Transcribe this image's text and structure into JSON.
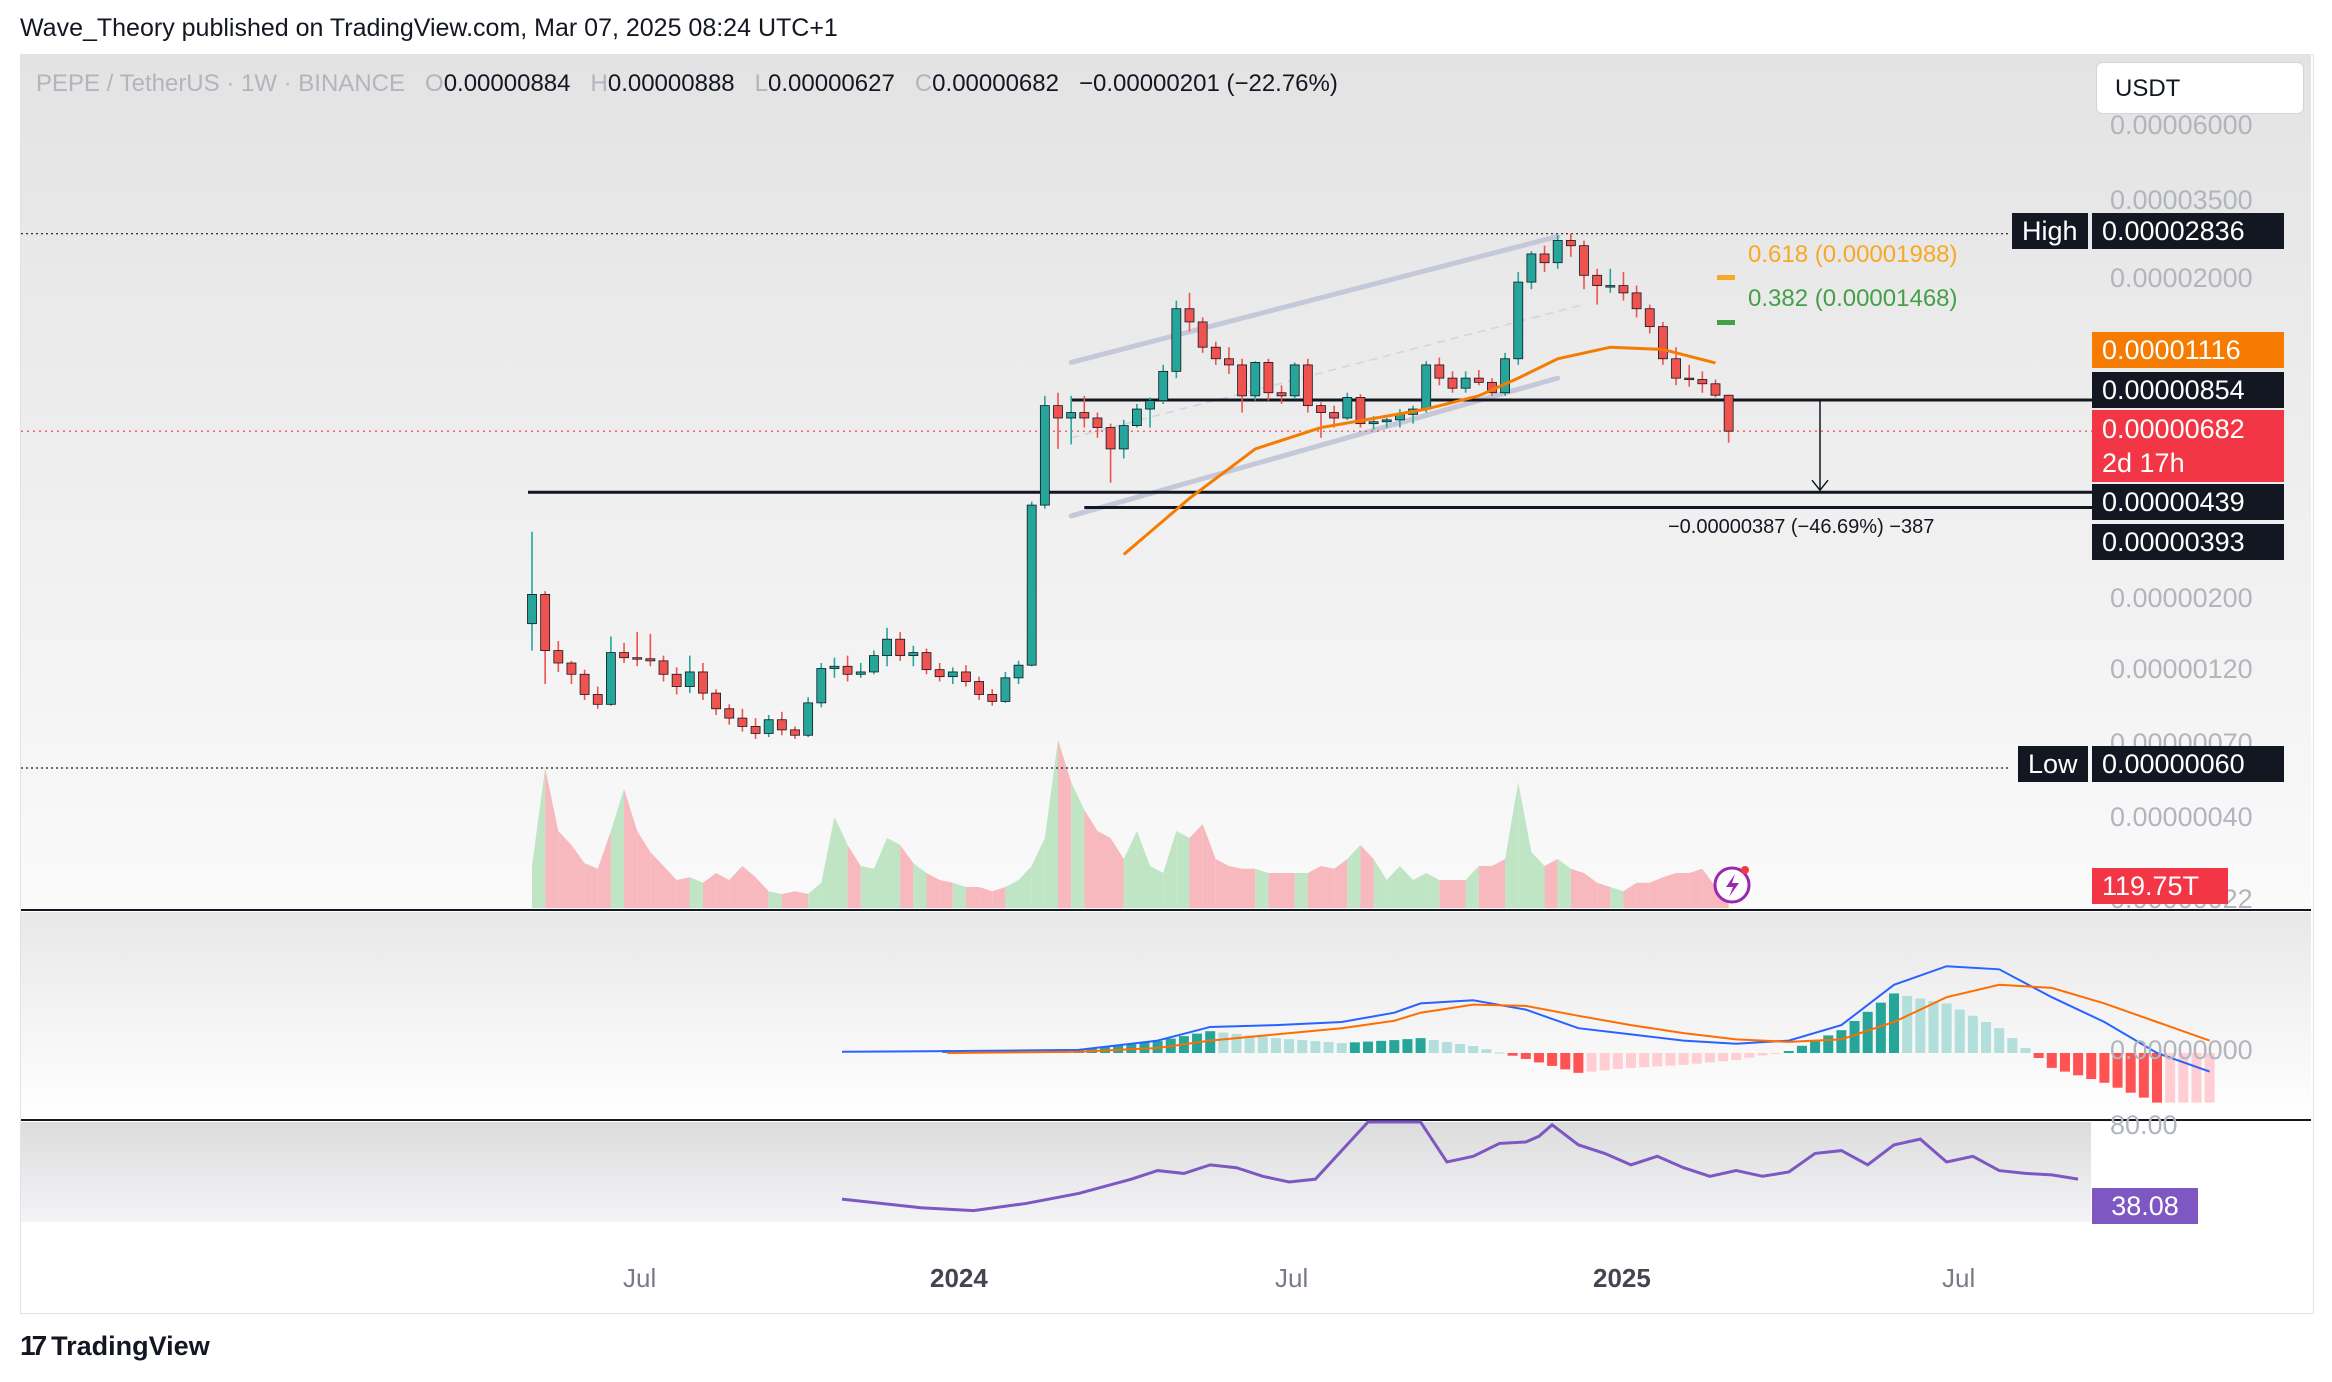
{
  "header": {
    "text": "Wave_Theory published on TradingView.com, Mar 07, 2025 08:24 UTC+1"
  },
  "legend": {
    "symbol": "PEPE / TetherUS · 1W · BINANCE",
    "open_key": "O",
    "open": "0.00000884",
    "high_key": "H",
    "high": "0.00000888",
    "low_key": "L",
    "low": "0.00000627",
    "close_key": "C",
    "close": "0.00000682",
    "change": "−0.00000201 (−22.76%)"
  },
  "currency_selector": "USDT",
  "price_axis": [
    "0.00006000",
    "0.00003500",
    "0.00002000",
    "0.00000200",
    "0.00000120",
    "0.00000070",
    "0.00000040",
    "0.00000022"
  ],
  "macd_axis": "0.00000000",
  "rsi_axis": "80.00",
  "time_axis": [
    {
      "label": "Jul",
      "bold": false
    },
    {
      "label": "2024",
      "bold": true
    },
    {
      "label": "Jul",
      "bold": false
    },
    {
      "label": "2025",
      "bold": true
    },
    {
      "label": "Jul",
      "bold": false
    }
  ],
  "price_labels": {
    "high_tag": "High",
    "high_value": "0.00002836",
    "ema_value": "0.00001116",
    "resistance_value": "0.00000854",
    "current_value": "0.00000682",
    "countdown": "2d 17h",
    "support1_value": "0.00000439",
    "support2_value": "0.00000393",
    "low_tag": "Low",
    "low_value": "0.00000060",
    "volume_value": "119.75T",
    "rsi_value": "38.08"
  },
  "fib": {
    "f618": "0.618 (0.00001988)",
    "f382": "0.382 (0.00001468)"
  },
  "measure_label": "−0.00000387 (−46.69%) −387",
  "footer": {
    "brand": "TradingView"
  },
  "colors": {
    "up": "#26a69a",
    "down": "#ef5350",
    "ema": "#f57c00",
    "macd": "#2962ff",
    "signal": "#ff6d00",
    "rsi": "#7e57c2",
    "fib618": "#f9a825",
    "fib382": "#43a047"
  },
  "chart_data": {
    "type": "candlestick",
    "timeframe": "1W",
    "scale": "log",
    "candles": [
      [
        1.7e-06,
        3.3e-06,
        1.4e-06,
        2.1e-06
      ],
      [
        2.1e-06,
        2.15e-06,
        1.1e-06,
        1.4e-06
      ],
      [
        1.4e-06,
        1.5e-06,
        1.2e-06,
        1.28e-06
      ],
      [
        1.28e-06,
        1.3e-06,
        1.1e-06,
        1.18e-06
      ],
      [
        1.18e-06,
        1.22e-06,
        9.8e-07,
        1.02e-06
      ],
      [
        1.02e-06,
        1.08e-06,
        9.2e-07,
        9.5e-07
      ],
      [
        9.5e-07,
        1.55e-06,
        9.4e-07,
        1.38e-06
      ],
      [
        1.38e-06,
        1.48e-06,
        1.28e-06,
        1.33e-06
      ],
      [
        1.33e-06,
        1.6e-06,
        1.25e-06,
        1.32e-06
      ],
      [
        1.32e-06,
        1.58e-06,
        1.25e-06,
        1.3e-06
      ],
      [
        1.3e-06,
        1.35e-06,
        1.12e-06,
        1.18e-06
      ],
      [
        1.18e-06,
        1.24e-06,
        1.02e-06,
        1.08e-06
      ],
      [
        1.08e-06,
        1.35e-06,
        1.03e-06,
        1.2e-06
      ],
      [
        1.2e-06,
        1.28e-06,
        9.8e-07,
        1.03e-06
      ],
      [
        1.03e-06,
        1.06e-06,
        8.8e-07,
        9.2e-07
      ],
      [
        9.2e-07,
        9.5e-07,
        8.2e-07,
        8.6e-07
      ],
      [
        8.6e-07,
        9.2e-07,
        7.8e-07,
        8.1e-07
      ],
      [
        8.1e-07,
        8.6e-07,
        7.4e-07,
        7.7e-07
      ],
      [
        7.7e-07,
        8.8e-07,
        7.5e-07,
        8.5e-07
      ],
      [
        8.5e-07,
        9e-07,
        7.6e-07,
        7.9e-07
      ],
      [
        7.9e-07,
        8.1e-07,
        7.4e-07,
        7.6e-07
      ],
      [
        7.6e-07,
        1e-06,
        7.5e-07,
        9.6e-07
      ],
      [
        9.6e-07,
        1.28e-06,
        9.3e-07,
        1.23e-06
      ],
      [
        1.23e-06,
        1.33e-06,
        1.15e-06,
        1.25e-06
      ],
      [
        1.25e-06,
        1.35e-06,
        1.12e-06,
        1.18e-06
      ],
      [
        1.18e-06,
        1.28e-06,
        1.15e-06,
        1.2e-06
      ],
      [
        1.2e-06,
        1.4e-06,
        1.18e-06,
        1.35e-06
      ],
      [
        1.35e-06,
        1.65e-06,
        1.25e-06,
        1.52e-06
      ],
      [
        1.52e-06,
        1.6e-06,
        1.3e-06,
        1.35e-06
      ],
      [
        1.35e-06,
        1.45e-06,
        1.25e-06,
        1.38e-06
      ],
      [
        1.38e-06,
        1.42e-06,
        1.18e-06,
        1.22e-06
      ],
      [
        1.22e-06,
        1.28e-06,
        1.12e-06,
        1.16e-06
      ],
      [
        1.16e-06,
        1.24e-06,
        1.1e-06,
        1.2e-06
      ],
      [
        1.2e-06,
        1.26e-06,
        1.08e-06,
        1.12e-06
      ],
      [
        1.12e-06,
        1.16e-06,
        9.8e-07,
        1.02e-06
      ],
      [
        1.02e-06,
        1.06e-06,
        9.4e-07,
        9.7e-07
      ],
      [
        9.7e-07,
        1.2e-06,
        9.6e-07,
        1.15e-06
      ],
      [
        1.15e-06,
        1.3e-06,
        1.1e-06,
        1.26e-06
      ],
      [
        1.26e-06,
        4.1e-06,
        1.25e-06,
        4e-06
      ],
      [
        4e-06,
        8.8e-06,
        3.9e-06,
        8.2e-06
      ],
      [
        8.2e-06,
        9e-06,
        6e-06,
        7.5e-06
      ],
      [
        7.5e-06,
        8.8e-06,
        6.2e-06,
        7.8e-06
      ],
      [
        7.8e-06,
        8.8e-06,
        7e-06,
        7.5e-06
      ],
      [
        7.5e-06,
        7.8e-06,
        6.5e-06,
        7e-06
      ],
      [
        7e-06,
        7.2e-06,
        4.7e-06,
        6e-06
      ],
      [
        6e-06,
        7.4e-06,
        5.6e-06,
        7.1e-06
      ],
      [
        7.1e-06,
        8.3e-06,
        7e-06,
        8e-06
      ],
      [
        8e-06,
        8.7e-06,
        7e-06,
        8.5e-06
      ],
      [
        8.5e-06,
        1.1e-05,
        8.3e-06,
        1.05e-05
      ],
      [
        1.05e-05,
        1.75e-05,
        1e-05,
        1.65e-05
      ],
      [
        1.65e-05,
        1.85e-05,
        1.4e-05,
        1.5e-05
      ],
      [
        1.5e-05,
        1.55e-05,
        1.2e-05,
        1.25e-05
      ],
      [
        1.25e-05,
        1.3e-05,
        1.1e-05,
        1.15e-05
      ],
      [
        1.15e-05,
        1.25e-05,
        1.03e-05,
        1.1e-05
      ],
      [
        1.1e-05,
        1.15e-05,
        7.8e-06,
        8.8e-06
      ],
      [
        8.8e-06,
        1.13e-05,
        8.5e-06,
        1.12e-05
      ],
      [
        1.12e-05,
        1.15e-05,
        8.5e-06,
        9e-06
      ],
      [
        9e-06,
        9.5e-06,
        8.3e-06,
        8.8e-06
      ],
      [
        8.8e-06,
        1.12e-05,
        8.6e-06,
        1.1e-05
      ],
      [
        1.1e-05,
        1.15e-05,
        7.8e-06,
        8.2e-06
      ],
      [
        8.2e-06,
        8.4e-06,
        6.5e-06,
        7.8e-06
      ],
      [
        7.8e-06,
        8.2e-06,
        7e-06,
        7.5e-06
      ],
      [
        7.5e-06,
        9e-06,
        7.4e-06,
        8.7e-06
      ],
      [
        8.7e-06,
        8.9e-06,
        7e-06,
        7.2e-06
      ],
      [
        7.2e-06,
        7.6e-06,
        6.9e-06,
        7.3e-06
      ],
      [
        7.3e-06,
        7.5e-06,
        7e-06,
        7.4e-06
      ],
      [
        7.4e-06,
        8e-06,
        7e-06,
        7.7e-06
      ],
      [
        7.7e-06,
        8.2e-06,
        7.2e-06,
        8e-06
      ],
      [
        8e-06,
        1.13e-05,
        7.8e-06,
        1.1e-05
      ],
      [
        1.1e-05,
        1.16e-05,
        9.5e-06,
        1e-05
      ],
      [
        1e-05,
        1.05e-05,
        9e-06,
        9.3e-06
      ],
      [
        9.3e-06,
        1.05e-05,
        9e-06,
        1e-05
      ],
      [
        1e-05,
        1.06e-05,
        9.5e-06,
        9.7e-06
      ],
      [
        9.7e-06,
        1e-05,
        8.8e-06,
        9e-06
      ],
      [
        9e-06,
        1.2e-05,
        8.8e-06,
        1.15e-05
      ],
      [
        1.15e-05,
        2.15e-05,
        1.1e-05,
        2e-05
      ],
      [
        2e-05,
        2.5e-05,
        1.9e-05,
        2.45e-05
      ],
      [
        2.45e-05,
        2.6e-05,
        2.15e-05,
        2.3e-05
      ],
      [
        2.3e-05,
        2.8e-05,
        2.2e-05,
        2.7e-05
      ],
      [
        2.7e-05,
        2.836e-05,
        2.4e-05,
        2.6e-05
      ],
      [
        2.6e-05,
        2.7e-05,
        1.9e-05,
        2.1e-05
      ],
      [
        2.1e-05,
        2.2e-05,
        1.7e-05,
        1.95e-05
      ],
      [
        1.95e-05,
        2.2e-05,
        1.85e-05,
        1.95e-05
      ],
      [
        1.95e-05,
        2.15e-05,
        1.75e-05,
        1.85e-05
      ],
      [
        1.85e-05,
        1.95e-05,
        1.55e-05,
        1.65e-05
      ],
      [
        1.65e-05,
        1.7e-05,
        1.38e-05,
        1.45e-05
      ],
      [
        1.45e-05,
        1.5e-05,
        1.1e-05,
        1.15e-05
      ],
      [
        1.15e-05,
        1.25e-05,
        9.5e-06,
        1e-05
      ],
      [
        1e-05,
        1.1e-05,
        9.4e-06,
        9.9e-06
      ],
      [
        9.9e-06,
        1.05e-05,
        9e-06,
        9.6e-06
      ],
      [
        9.6e-06,
        9.9e-06,
        8.7e-06,
        8.84e-06
      ],
      [
        8.84e-06,
        8.88e-06,
        6.27e-06,
        6.82e-06
      ]
    ],
    "ema": [
      [
        45,
        2.8e-06
      ],
      [
        50,
        4.2e-06
      ],
      [
        55,
        6e-06
      ],
      [
        60,
        7e-06
      ],
      [
        65,
        7.6e-06
      ],
      [
        68,
        8e-06
      ],
      [
        72,
        8.8e-06
      ],
      [
        75,
        1e-05
      ],
      [
        78,
        1.15e-05
      ],
      [
        82,
        1.25e-05
      ],
      [
        86,
        1.23e-05
      ],
      [
        90,
        1.116e-05
      ]
    ],
    "horizontal_levels": {
      "high": 2.836e-05,
      "resistance": 8.54e-06,
      "support1": 4.39e-06,
      "support2": 3.93e-06,
      "low": 6e-07,
      "current": 6.82e-06
    },
    "volume": [
      0.3,
      1.0,
      0.55,
      0.45,
      0.32,
      0.28,
      0.55,
      0.85,
      0.55,
      0.4,
      0.3,
      0.2,
      0.22,
      0.18,
      0.25,
      0.2,
      0.3,
      0.22,
      0.12,
      0.1,
      0.12,
      0.1,
      0.18,
      0.65,
      0.45,
      0.3,
      0.28,
      0.5,
      0.45,
      0.32,
      0.25,
      0.2,
      0.18,
      0.15,
      0.15,
      0.12,
      0.15,
      0.2,
      0.3,
      0.5,
      1.2,
      0.9,
      0.7,
      0.55,
      0.5,
      0.35,
      0.55,
      0.3,
      0.25,
      0.55,
      0.5,
      0.6,
      0.35,
      0.3,
      0.28,
      0.28,
      0.25,
      0.25,
      0.25,
      0.25,
      0.3,
      0.28,
      0.35,
      0.45,
      0.35,
      0.2,
      0.3,
      0.2,
      0.25,
      0.2,
      0.2,
      0.2,
      0.3,
      0.3,
      0.35,
      0.9,
      0.4,
      0.3,
      0.35,
      0.28,
      0.25,
      0.18,
      0.15,
      0.12,
      0.18,
      0.18,
      0.22,
      0.25,
      0.25,
      0.28,
      0.15,
      0.12
    ],
    "macd": [
      [
        22,
        0.2
      ],
      [
        30,
        0.3
      ],
      [
        40,
        0.5
      ],
      [
        46,
        2.0
      ],
      [
        50,
        4.2
      ],
      [
        55,
        4.5
      ],
      [
        60,
        5.0
      ],
      [
        64,
        6.5
      ],
      [
        66,
        8.0
      ],
      [
        70,
        8.5
      ],
      [
        74,
        7.0
      ],
      [
        78,
        4.0
      ],
      [
        82,
        3.0
      ],
      [
        86,
        2.0
      ],
      [
        90,
        1.5
      ],
      [
        94,
        2.0
      ],
      [
        98,
        4.5
      ],
      [
        102,
        11.0
      ],
      [
        106,
        14.0
      ],
      [
        110,
        13.5
      ],
      [
        114,
        9.0
      ],
      [
        118,
        5.0
      ],
      [
        122,
        0.0
      ],
      [
        126,
        -3.0
      ]
    ],
    "signal": [
      [
        30,
        0.0
      ],
      [
        40,
        0.2
      ],
      [
        46,
        0.8
      ],
      [
        50,
        2.0
      ],
      [
        55,
        3.0
      ],
      [
        60,
        4.0
      ],
      [
        64,
        5.2
      ],
      [
        66,
        6.5
      ],
      [
        70,
        7.8
      ],
      [
        74,
        7.6
      ],
      [
        78,
        6.0
      ],
      [
        82,
        4.5
      ],
      [
        86,
        3.2
      ],
      [
        90,
        2.2
      ],
      [
        94,
        1.8
      ],
      [
        98,
        2.2
      ],
      [
        102,
        5.0
      ],
      [
        106,
        9.0
      ],
      [
        110,
        11.0
      ],
      [
        114,
        10.5
      ],
      [
        118,
        8.0
      ],
      [
        122,
        5.0
      ],
      [
        126,
        2.0
      ]
    ],
    "rsi": [
      [
        22,
        36
      ],
      [
        28,
        30
      ],
      [
        32,
        28
      ],
      [
        36,
        33
      ],
      [
        40,
        40
      ],
      [
        44,
        50
      ],
      [
        46,
        56
      ],
      [
        48,
        54
      ],
      [
        50,
        60
      ],
      [
        52,
        58
      ],
      [
        54,
        52
      ],
      [
        56,
        48
      ],
      [
        58,
        50
      ],
      [
        60,
        70
      ],
      [
        62,
        95
      ],
      [
        64,
        94
      ],
      [
        66,
        95
      ],
      [
        68,
        62
      ],
      [
        70,
        66
      ],
      [
        72,
        75
      ],
      [
        74,
        76
      ],
      [
        75,
        80
      ],
      [
        76,
        88
      ],
      [
        78,
        74
      ],
      [
        80,
        68
      ],
      [
        82,
        60
      ],
      [
        84,
        66
      ],
      [
        86,
        58
      ],
      [
        88,
        52
      ],
      [
        90,
        56
      ],
      [
        92,
        52
      ],
      [
        94,
        55
      ],
      [
        96,
        68
      ],
      [
        98,
        70
      ],
      [
        100,
        60
      ],
      [
        102,
        74
      ],
      [
        104,
        78
      ],
      [
        106,
        62
      ],
      [
        108,
        66
      ],
      [
        110,
        56
      ],
      [
        112,
        54
      ],
      [
        114,
        53
      ],
      [
        116,
        50
      ]
    ]
  }
}
